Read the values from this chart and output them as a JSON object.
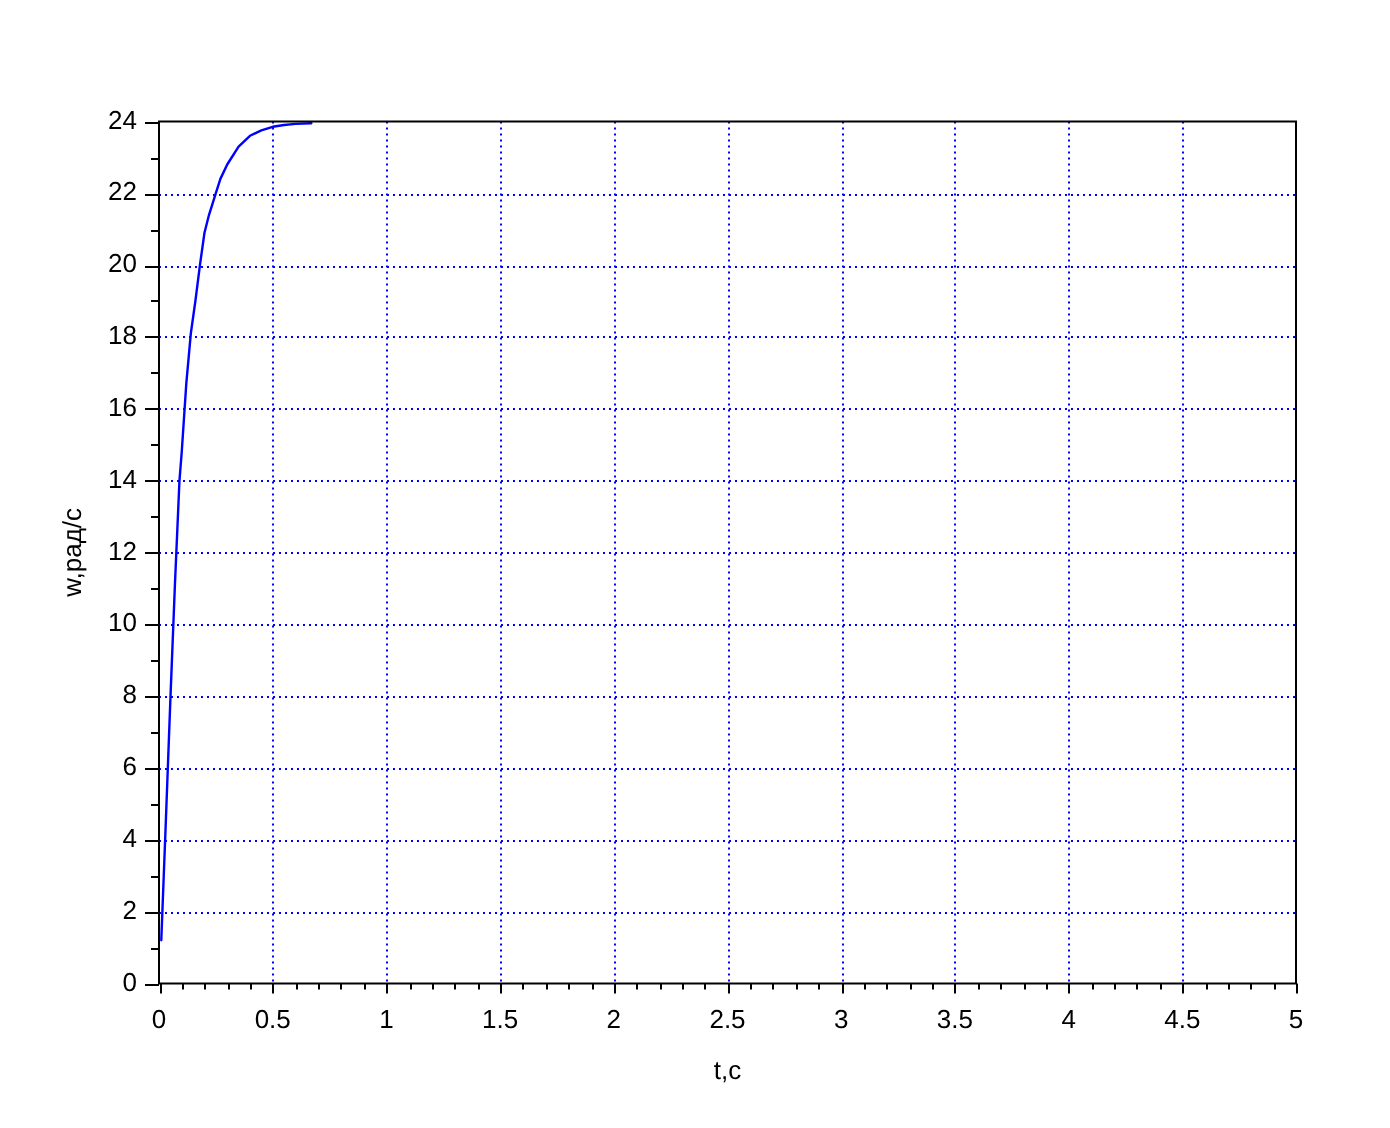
{
  "chart_data": {
    "type": "line",
    "xlabel": "t,с",
    "ylabel": "w,рад/с",
    "x": [
      0.01,
      0.03,
      0.05,
      0.07,
      0.09,
      0.1,
      0.12,
      0.14,
      0.16,
      0.18,
      0.2,
      0.22,
      0.25,
      0.27,
      0.3,
      0.35,
      0.4,
      0.45,
      0.5,
      0.55,
      0.6,
      0.67
    ],
    "series": [
      {
        "color": "#0000ff",
        "values": [
          1.2,
          4.5,
          7.9,
          11.1,
          14.0,
          14.8,
          16.7,
          18.1,
          19.0,
          20.0,
          20.9,
          21.4,
          22.0,
          22.4,
          22.8,
          23.3,
          23.6,
          23.75,
          23.85,
          23.9,
          23.93,
          23.95
        ]
      }
    ],
    "xlim": [
      0,
      5
    ],
    "ylim": [
      0,
      24
    ],
    "xticks": [
      0,
      {
        "value": 0.1,
        "label": null
      },
      {
        "value": 0.2,
        "label": null
      },
      {
        "value": 0.3,
        "label": null
      },
      {
        "value": 0.4,
        "label": null
      },
      0.5,
      {
        "value": 0.6,
        "label": null
      },
      {
        "value": 0.7,
        "label": null
      },
      {
        "value": 0.8,
        "label": null
      },
      {
        "value": 0.9,
        "label": null
      },
      1,
      {
        "value": 1.1,
        "label": null
      },
      {
        "value": 1.2,
        "label": null
      },
      {
        "value": 1.3,
        "label": null
      },
      {
        "value": 1.4,
        "label": null
      },
      1.5,
      {
        "value": 1.6,
        "label": null
      },
      {
        "value": 1.7,
        "label": null
      },
      {
        "value": 1.8,
        "label": null
      },
      {
        "value": 1.9,
        "label": null
      },
      2,
      {
        "value": 2.1,
        "label": null
      },
      {
        "value": 2.2,
        "label": null
      },
      {
        "value": 2.3,
        "label": null
      },
      {
        "value": 2.4,
        "label": null
      },
      2.5,
      {
        "value": 2.6,
        "label": null
      },
      {
        "value": 2.7,
        "label": null
      },
      {
        "value": 2.8,
        "label": null
      },
      {
        "value": 2.9,
        "label": null
      },
      3,
      {
        "value": 3.1,
        "label": null
      },
      {
        "value": 3.2,
        "label": null
      },
      {
        "value": 3.3,
        "label": null
      },
      {
        "value": 3.4,
        "label": null
      },
      3.5,
      {
        "value": 3.6,
        "label": null
      },
      {
        "value": 3.7,
        "label": null
      },
      {
        "value": 3.8,
        "label": null
      },
      {
        "value": 3.9,
        "label": null
      },
      4,
      {
        "value": 4.1,
        "label": null
      },
      {
        "value": 4.2,
        "label": null
      },
      {
        "value": 4.3,
        "label": null
      },
      {
        "value": 4.4,
        "label": null
      },
      4.5,
      {
        "value": 4.6,
        "label": null
      },
      {
        "value": 4.7,
        "label": null
      },
      {
        "value": 4.8,
        "label": null
      },
      {
        "value": 4.9,
        "label": null
      },
      5
    ],
    "yticks": [
      0,
      {
        "value": 1,
        "label": null
      },
      2,
      {
        "value": 3,
        "label": null
      },
      4,
      {
        "value": 5,
        "label": null
      },
      6,
      {
        "value": 7,
        "label": null
      },
      8,
      {
        "value": 9,
        "label": null
      },
      10,
      {
        "value": 11,
        "label": null
      },
      12,
      {
        "value": 13,
        "label": null
      },
      14,
      {
        "value": 15,
        "label": null
      },
      16,
      {
        "value": 17,
        "label": null
      },
      18,
      {
        "value": 19,
        "label": null
      },
      20,
      {
        "value": 21,
        "label": null
      },
      22,
      {
        "value": 23,
        "label": null
      },
      24
    ],
    "grid": true,
    "line_style": "solid"
  }
}
